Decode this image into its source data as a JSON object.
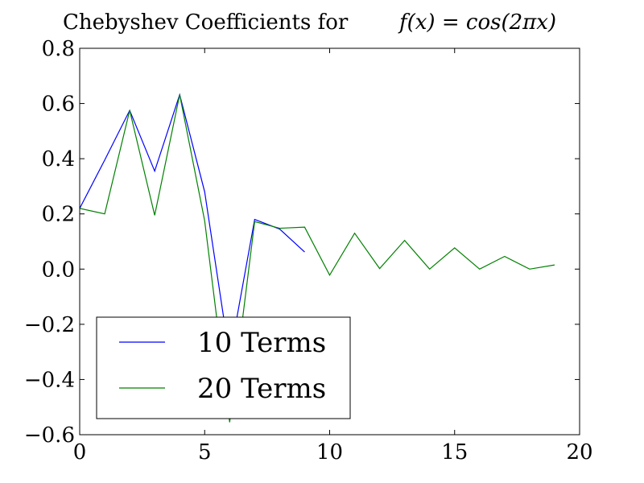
{
  "chart_data": {
    "type": "line",
    "title": "Chebyshev Coefficients for",
    "title_formula": "f(x) = cos(2πx)",
    "xlabel": "",
    "ylabel": "",
    "xlim": [
      0,
      20
    ],
    "ylim": [
      -0.6,
      0.8
    ],
    "xticks": [
      0,
      5,
      10,
      15,
      20
    ],
    "xtick_labels": [
      "0",
      "5",
      "10",
      "15",
      "20"
    ],
    "yticks": [
      -0.6,
      -0.4,
      -0.2,
      0.0,
      0.2,
      0.4,
      0.6,
      0.8
    ],
    "ytick_labels": [
      "−0.6",
      "−0.4",
      "−0.2",
      "0.0",
      "0.2",
      "0.4",
      "0.6",
      "0.8"
    ],
    "grid": false,
    "legend_position": "lower-left",
    "series": [
      {
        "name": "10 Terms",
        "color": "#0000ff",
        "x": [
          0,
          1,
          2,
          3,
          4,
          5,
          6,
          7,
          8,
          9
        ],
        "y": [
          0.22,
          0.395,
          0.575,
          0.355,
          0.632,
          0.28,
          -0.32,
          0.18,
          0.145,
          0.062
        ]
      },
      {
        "name": "20 Terms",
        "color": "#008000",
        "x": [
          0,
          1,
          2,
          3,
          4,
          5,
          6,
          7,
          8,
          9,
          10,
          11,
          12,
          13,
          14,
          15,
          16,
          17,
          18,
          19
        ],
        "y": [
          0.22,
          0.2,
          0.575,
          0.195,
          0.632,
          0.175,
          -0.555,
          0.172,
          0.148,
          0.152,
          -0.022,
          0.13,
          0.002,
          0.104,
          0.0,
          0.077,
          0.0,
          0.046,
          0.0,
          0.015
        ]
      }
    ]
  }
}
